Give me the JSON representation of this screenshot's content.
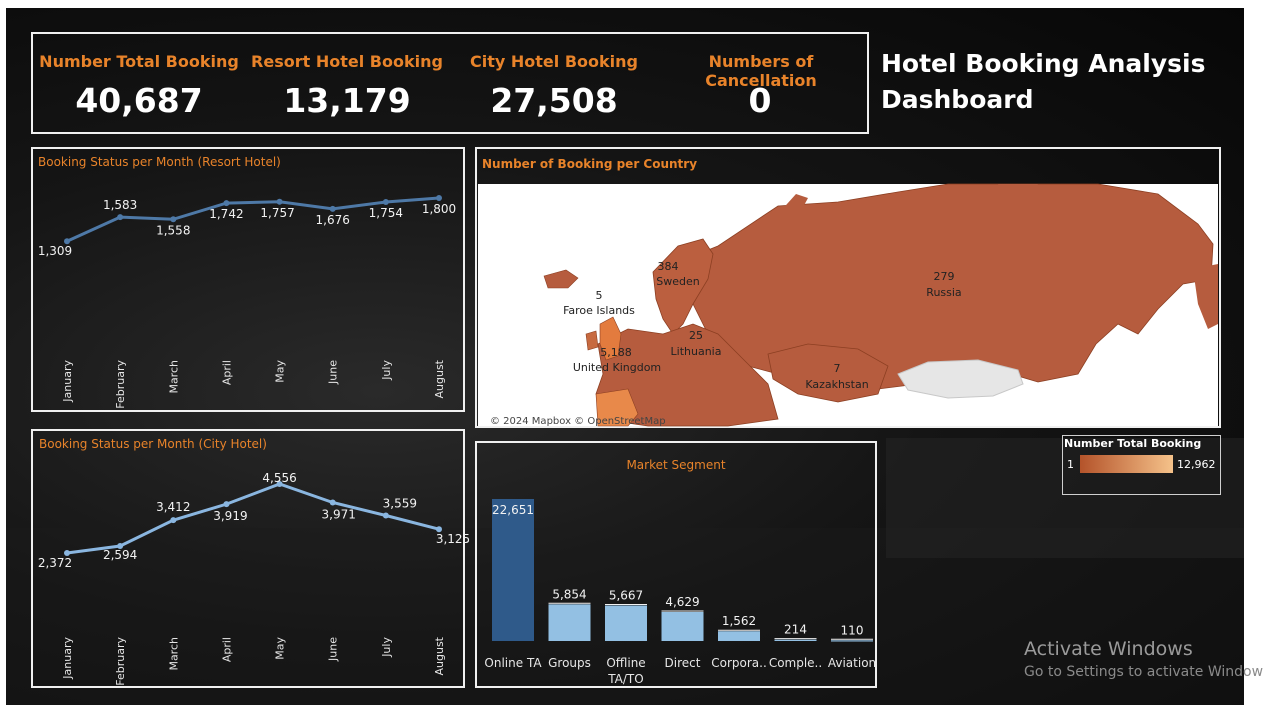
{
  "dashboard": {
    "title_line1": "Hotel Booking Analysis",
    "title_line2": "Dashboard"
  },
  "kpis": [
    {
      "label": "Number Total Booking",
      "value": "40,687"
    },
    {
      "label": "Resort Hotel Booking",
      "value": "13,179"
    },
    {
      "label": "City Hotel Booking",
      "value": "27,508"
    },
    {
      "label": "Numbers of Cancellation",
      "value": "0"
    }
  ],
  "map_panel": {
    "title": "Number of Booking per Country",
    "attribution": "© 2024 Mapbox © OpenStreetMap",
    "legend_title": "Number Total Booking",
    "legend_min": "1",
    "legend_max": "12,962",
    "colors": {
      "low": "#b4532a",
      "high": "#f5c28a",
      "land": "#b65c3e",
      "ocean": "#ffffff",
      "nodata": "#e6e6e6"
    },
    "countries": [
      {
        "name": "Sweden",
        "value": "384"
      },
      {
        "name": "Faroe Islands",
        "value": "5"
      },
      {
        "name": "United Kingdom",
        "value": "5,188"
      },
      {
        "name": "Lithuania",
        "value": "25"
      },
      {
        "name": "Russia",
        "value": "279"
      },
      {
        "name": "Kazakhstan",
        "value": "7"
      }
    ]
  },
  "windows_notice": {
    "line1": "Activate Windows",
    "line2": "Go to Settings to activate Window"
  },
  "chart_data": [
    {
      "type": "line",
      "title": "Booking Status per Month (Resort Hotel)",
      "categories": [
        "January",
        "February",
        "March",
        "April",
        "May",
        "June",
        "July",
        "August"
      ],
      "values": [
        1309,
        1583,
        1558,
        1742,
        1757,
        1676,
        1754,
        1800
      ],
      "labels": [
        "1,309",
        "1,583",
        "1,558",
        "1,742",
        "1,757",
        "1,676",
        "1,754",
        "1,800"
      ],
      "color": "#4e79a7"
    },
    {
      "type": "line",
      "title": "Booking Status per Month (City Hotel)",
      "categories": [
        "January",
        "February",
        "March",
        "April",
        "May",
        "June",
        "July",
        "August"
      ],
      "values": [
        2372,
        2594,
        3412,
        3919,
        4556,
        3971,
        3559,
        3125
      ],
      "labels": [
        "2,372",
        "2,594",
        "3,412",
        "3,919",
        "4,556",
        "3,971",
        "3,559",
        "3,125"
      ],
      "color": "#8ab6e0"
    },
    {
      "type": "bar",
      "title": "Market Segment",
      "categories": [
        "Online TA",
        "Groups",
        "Offline TA/TO",
        "Direct",
        "Corpora..",
        "Comple..",
        "Aviation"
      ],
      "category_lines": [
        [
          "Online TA"
        ],
        [
          "Groups"
        ],
        [
          "Offline",
          "TA/TO"
        ],
        [
          "Direct"
        ],
        [
          "Corpora.."
        ],
        [
          "Comple.."
        ],
        [
          "Aviation"
        ]
      ],
      "values": [
        22651,
        5854,
        5667,
        4629,
        1562,
        214,
        110
      ],
      "labels": [
        "22,651",
        "5,854",
        "5,667",
        "4,629",
        "1,562",
        "214",
        "110"
      ],
      "colors": [
        "#2f5a8a",
        "#93c0e3"
      ]
    }
  ]
}
